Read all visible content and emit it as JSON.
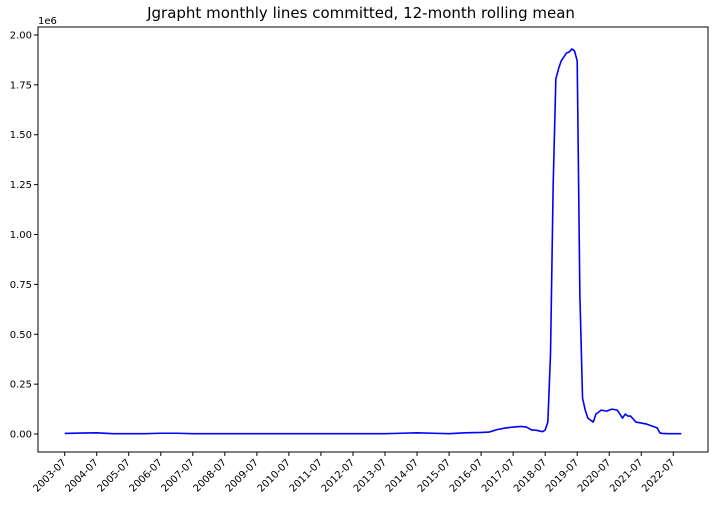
{
  "chart_data": {
    "type": "line",
    "title": "Jgrapht monthly lines committed, 12-month rolling mean",
    "xlabel": "",
    "ylabel": "",
    "y_scale_label": "1e6",
    "line_color": "#0000ff",
    "grid": false,
    "legend": "none",
    "xlim": [
      "2002-09",
      "2023-08"
    ],
    "ylim": [
      -90000,
      2040000
    ],
    "x_ticks": [
      "2003-07",
      "2004-07",
      "2005-07",
      "2006-07",
      "2007-07",
      "2008-07",
      "2009-07",
      "2010-07",
      "2011-07",
      "2012-07",
      "2013-07",
      "2014-07",
      "2015-07",
      "2016-07",
      "2017-07",
      "2018-07",
      "2019-07",
      "2020-07",
      "2021-07",
      "2022-07"
    ],
    "y_ticks": [
      {
        "value": 0,
        "label": "0.00"
      },
      {
        "value": 250000,
        "label": "0.25"
      },
      {
        "value": 500000,
        "label": "0.50"
      },
      {
        "value": 750000,
        "label": "0.75"
      },
      {
        "value": 1000000,
        "label": "1.00"
      },
      {
        "value": 1250000,
        "label": "1.25"
      },
      {
        "value": 1500000,
        "label": "1.50"
      },
      {
        "value": 1750000,
        "label": "1.75"
      },
      {
        "value": 2000000,
        "label": "2.00"
      }
    ],
    "series": [
      {
        "x": [
          "2003-07",
          "2004-01",
          "2004-07",
          "2005-01",
          "2005-07",
          "2006-01",
          "2006-07",
          "2007-01",
          "2007-07",
          "2008-07",
          "2009-07",
          "2010-07",
          "2011-07",
          "2012-07",
          "2013-07",
          "2014-01",
          "2014-07",
          "2015-01",
          "2015-07",
          "2016-01",
          "2016-07",
          "2016-10",
          "2017-01",
          "2017-04",
          "2017-07",
          "2017-10",
          "2017-12",
          "2018-02",
          "2018-03",
          "2018-04",
          "2018-05",
          "2018-06",
          "2018-07",
          "2018-08",
          "2018-09",
          "2018-10",
          "2018-11",
          "2018-12",
          "2019-01",
          "2019-02",
          "2019-03",
          "2019-04",
          "2019-05",
          "2019-06",
          "2019-07",
          "2019-08",
          "2019-09",
          "2019-10",
          "2019-11",
          "2019-12",
          "2020-01",
          "2020-02",
          "2020-04",
          "2020-06",
          "2020-08",
          "2020-10",
          "2020-12",
          "2021-01",
          "2021-02",
          "2021-03",
          "2021-05",
          "2021-07",
          "2021-09",
          "2021-11",
          "2022-01",
          "2022-02",
          "2022-03",
          "2022-05",
          "2022-07",
          "2022-10"
        ],
        "y": [
          3000,
          5000,
          6000,
          2000,
          2000,
          2000,
          4000,
          4000,
          2000,
          2000,
          2000,
          2000,
          2000,
          2000,
          2000,
          4000,
          6000,
          4000,
          2000,
          6000,
          8000,
          10000,
          22000,
          30000,
          35000,
          38000,
          35000,
          20000,
          20000,
          18000,
          15000,
          12000,
          20000,
          60000,
          400000,
          1250000,
          1780000,
          1830000,
          1870000,
          1890000,
          1910000,
          1915000,
          1930000,
          1920000,
          1870000,
          700000,
          180000,
          120000,
          80000,
          70000,
          60000,
          100000,
          120000,
          115000,
          125000,
          120000,
          80000,
          100000,
          90000,
          90000,
          60000,
          55000,
          50000,
          40000,
          30000,
          5000,
          3000,
          2000,
          2000,
          2000
        ]
      }
    ]
  }
}
